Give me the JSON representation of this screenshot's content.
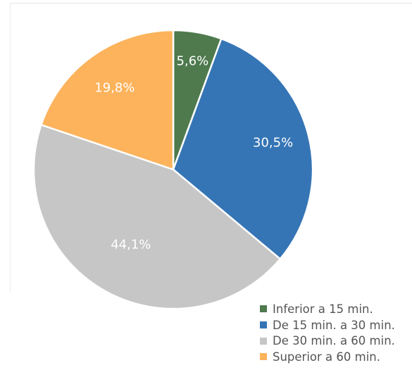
{
  "chart_data": {
    "type": "pie",
    "title": "",
    "slices": [
      {
        "name": "Inferior a 15 min.",
        "value": 5.6,
        "label": "5,6%",
        "color": "#4e7a4e"
      },
      {
        "name": "De 15 min. a 30 min.",
        "value": 30.5,
        "label": "30,5%",
        "color": "#3575b5"
      },
      {
        "name": "De 30 min. a 60 min.",
        "value": 44.1,
        "label": "44,1%",
        "color": "#c6c6c6"
      },
      {
        "name": "Superior a 60 min.",
        "value": 19.8,
        "label": "19,8%",
        "color": "#fcb35c"
      }
    ],
    "legend": {
      "placement": "bottom-right",
      "items": [
        "Inferior a 15 min.",
        "De 15 min. a 30 min.",
        "De 30 min. a 60 min.",
        "Superior a 60 min."
      ]
    }
  }
}
